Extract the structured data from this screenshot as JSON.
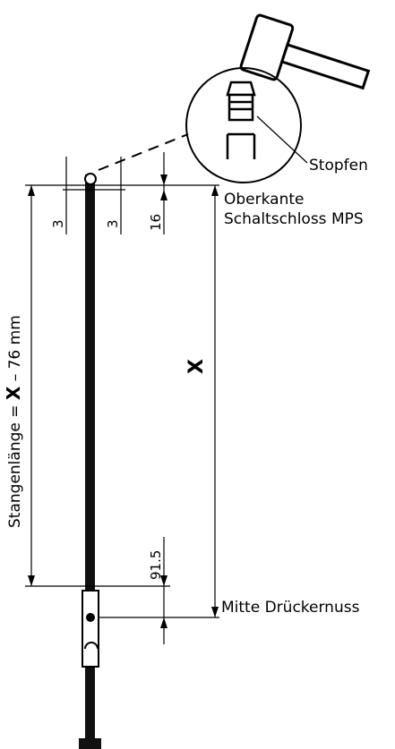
{
  "labels": {
    "stopfen": "Stopfen",
    "oberkante": "Oberkante",
    "schaltschloss": "Schaltschloss MPS",
    "x": "X",
    "mitte": "Mitte Drückernuss"
  },
  "rod_length": {
    "prefix": "Stangenlänge = ",
    "variable": "X",
    "suffix": " – 76 mm"
  },
  "dimensions": {
    "left_gap": "3",
    "right_gap": "3",
    "top_offset": "16",
    "bottom_offset": "91.5"
  }
}
